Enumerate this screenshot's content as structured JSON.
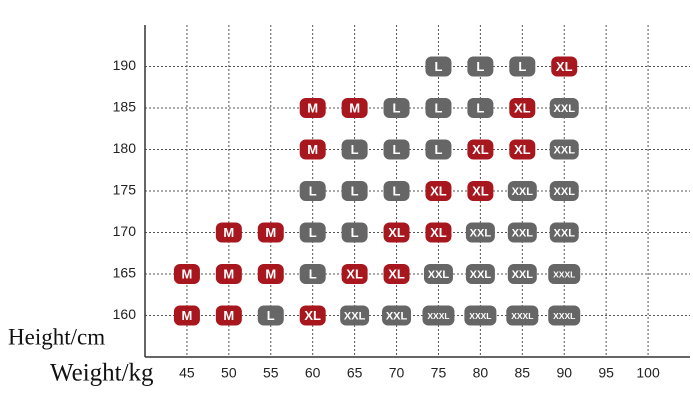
{
  "chart_data": {
    "type": "scatter",
    "x_label": "Weight/kg",
    "y_label": "Height/cm",
    "xlim": [
      40,
      105
    ],
    "xticks": [
      45,
      50,
      55,
      60,
      65,
      70,
      75,
      80,
      85,
      90,
      95,
      100
    ],
    "ylim": [
      155,
      195
    ],
    "yticks": [
      160,
      165,
      170,
      175,
      180,
      185,
      190
    ],
    "grid": true,
    "series": [
      {
        "name": "M",
        "color": "#a8161e",
        "x": [
          60,
          65,
          60,
          50,
          55,
          45,
          50,
          55,
          45,
          50
        ],
        "y": [
          185,
          185,
          180,
          170,
          170,
          165,
          165,
          165,
          160,
          160
        ]
      },
      {
        "name": "L",
        "color": "#666666",
        "x": [
          75,
          80,
          85,
          70,
          75,
          80,
          65,
          70,
          75,
          60,
          65,
          70,
          60,
          65,
          60,
          55
        ],
        "y": [
          190,
          190,
          190,
          185,
          185,
          185,
          180,
          180,
          180,
          175,
          175,
          175,
          170,
          170,
          165,
          160
        ]
      },
      {
        "name": "XL",
        "color": "#a8161e",
        "x": [
          90,
          85,
          80,
          85,
          75,
          80,
          70,
          75,
          65,
          70,
          60
        ],
        "y": [
          190,
          185,
          180,
          180,
          175,
          175,
          170,
          170,
          165,
          165,
          160
        ]
      },
      {
        "name": "XXL",
        "color": "#666666",
        "x": [
          90,
          90,
          85,
          90,
          80,
          85,
          90,
          75,
          80,
          85,
          65,
          70
        ],
        "y": [
          185,
          180,
          175,
          175,
          170,
          170,
          170,
          165,
          165,
          165,
          160,
          160
        ]
      },
      {
        "name": "XXXL",
        "color": "#666666",
        "x": [
          90,
          75,
          80,
          85,
          90
        ],
        "y": [
          165,
          160,
          160,
          160,
          160
        ]
      }
    ]
  }
}
